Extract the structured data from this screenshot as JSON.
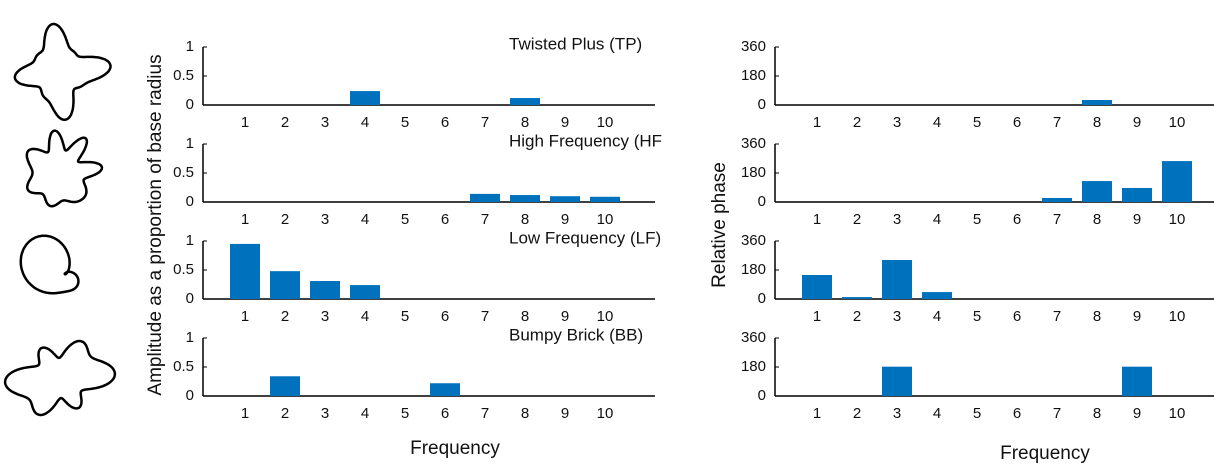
{
  "figure": {
    "left_ylabel": "Amplitude as a proportion of base radius",
    "right_ylabel": "Relative phase",
    "left_xlabel": "Frequency",
    "right_xlabel": "Frequency"
  },
  "chart_data": [
    {
      "type": "bar",
      "title": "Twisted Plus (TP)",
      "categories": [
        "1",
        "2",
        "3",
        "4",
        "5",
        "6",
        "7",
        "8",
        "9",
        "10"
      ],
      "values": [
        0,
        0,
        0,
        0.24,
        0,
        0,
        0,
        0.12,
        0,
        0
      ],
      "color": "#0072bd",
      "ylim": [
        0,
        1
      ],
      "yticks": [
        0,
        0.5,
        1
      ]
    },
    {
      "type": "bar",
      "title": "High Frequency (HF",
      "categories": [
        "1",
        "2",
        "3",
        "4",
        "5",
        "6",
        "7",
        "8",
        "9",
        "10"
      ],
      "values": [
        0,
        0,
        0,
        0,
        0,
        0,
        0.14,
        0.12,
        0.1,
        0.09
      ],
      "color": "#0072bd",
      "ylim": [
        0,
        1
      ],
      "yticks": [
        0,
        0.5,
        1
      ]
    },
    {
      "type": "bar",
      "title": "Low Frequency (LF)",
      "categories": [
        "1",
        "2",
        "3",
        "4",
        "5",
        "6",
        "7",
        "8",
        "9",
        "10"
      ],
      "values": [
        0.95,
        0.48,
        0.31,
        0.24,
        0,
        0,
        0,
        0,
        0,
        0
      ],
      "color": "#0072bd",
      "ylim": [
        0,
        1
      ],
      "yticks": [
        0,
        0.5,
        1
      ]
    },
    {
      "type": "bar",
      "title": "Bumpy Brick (BB)",
      "categories": [
        "1",
        "2",
        "3",
        "4",
        "5",
        "6",
        "7",
        "8",
        "9",
        "10"
      ],
      "values": [
        0,
        0.34,
        0,
        0,
        0,
        0.22,
        0,
        0,
        0,
        0
      ],
      "color": "#0072bd",
      "ylim": [
        0,
        1
      ],
      "yticks": [
        0,
        0.5,
        1
      ]
    },
    {
      "type": "bar",
      "categories": [
        "1",
        "2",
        "3",
        "4",
        "5",
        "6",
        "7",
        "8",
        "9",
        "10"
      ],
      "values": [
        0,
        0,
        0,
        0,
        0,
        0,
        0,
        31,
        0,
        0
      ],
      "color": "#0072bd",
      "ylim": [
        0,
        360
      ],
      "yticks": [
        0,
        180,
        360
      ]
    },
    {
      "type": "bar",
      "categories": [
        "1",
        "2",
        "3",
        "4",
        "5",
        "6",
        "7",
        "8",
        "9",
        "10"
      ],
      "values": [
        0,
        0,
        0,
        0,
        0,
        0,
        25,
        130,
        87,
        254
      ],
      "color": "#0072bd",
      "ylim": [
        0,
        360
      ],
      "yticks": [
        0,
        180,
        360
      ]
    },
    {
      "type": "bar",
      "categories": [
        "1",
        "2",
        "3",
        "4",
        "5",
        "6",
        "7",
        "8",
        "9",
        "10"
      ],
      "values": [
        149,
        12,
        242,
        43,
        0,
        0,
        0,
        0,
        0,
        0
      ],
      "color": "#0072bd",
      "ylim": [
        0,
        360
      ],
      "yticks": [
        0,
        180,
        360
      ]
    },
    {
      "type": "bar",
      "categories": [
        "1",
        "2",
        "3",
        "4",
        "5",
        "6",
        "7",
        "8",
        "9",
        "10"
      ],
      "values": [
        0,
        0,
        182,
        0,
        0,
        0,
        0,
        0,
        182,
        0
      ],
      "color": "#0072bd",
      "ylim": [
        0,
        360
      ],
      "yticks": [
        0,
        180,
        360
      ]
    }
  ]
}
